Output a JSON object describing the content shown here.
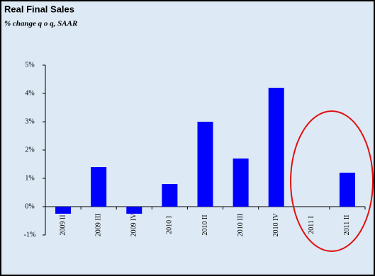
{
  "chart_data": {
    "type": "bar",
    "title": "Real Final Sales",
    "subtitle": "% change q o q, SAAR",
    "categories": [
      "2009 II",
      "2009 III",
      "2009 IV",
      "2010 I",
      "2010 II",
      "2010 III",
      "2010 IV",
      "2011 I",
      "2011 II"
    ],
    "values": [
      -0.25,
      1.4,
      -0.25,
      0.8,
      3.0,
      1.7,
      4.2,
      0,
      1.2
    ],
    "color": "#0000ff",
    "ylim": [
      -1,
      5
    ],
    "yticks": [
      {
        "value": -1,
        "label": "-1%"
      },
      {
        "value": 0,
        "label": "0%"
      },
      {
        "value": 1,
        "label": "1%"
      },
      {
        "value": 2,
        "label": "2%"
      },
      {
        "value": 3,
        "label": "3%"
      },
      {
        "value": 4,
        "label": "4%"
      },
      {
        "value": 5,
        "label": "5%"
      }
    ],
    "grid": false
  }
}
